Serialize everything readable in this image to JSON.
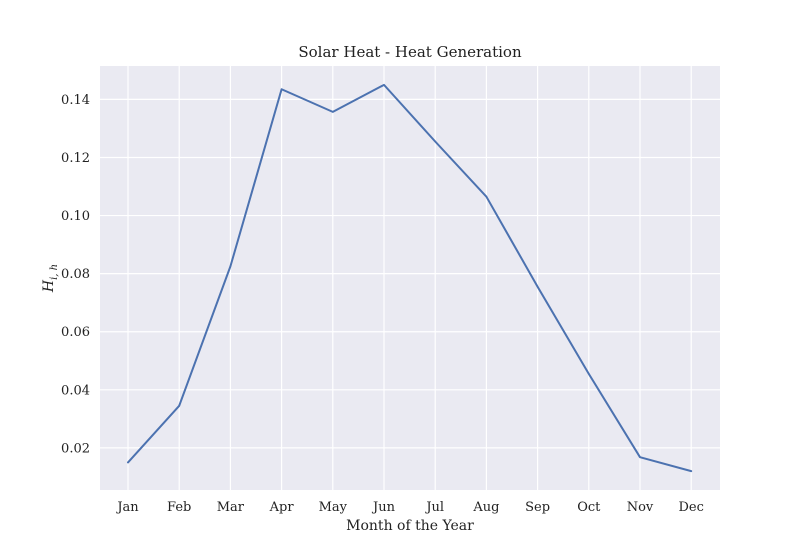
{
  "chart_data": {
    "type": "line",
    "title": "Solar Heat - Heat Generation",
    "xlabel": "Month of the Year",
    "ylabel_main": "H",
    "ylabel_sub": "i, h",
    "categories": [
      "Jan",
      "Feb",
      "Mar",
      "Apr",
      "May",
      "Jun",
      "Jul",
      "Aug",
      "Sep",
      "Oct",
      "Nov",
      "Dec"
    ],
    "series": [
      {
        "values": [
          0.015,
          0.0345,
          0.0825,
          0.1435,
          0.1357,
          0.145,
          0.1255,
          0.1065,
          0.0755,
          0.0455,
          0.0168,
          0.012
        ]
      }
    ],
    "ylim": [
      0.0055,
      0.1515
    ],
    "yticks": [
      0.02,
      0.04,
      0.06,
      0.08,
      0.1,
      0.12,
      0.14
    ],
    "ytick_labels": [
      "0.02",
      "0.04",
      "0.06",
      "0.08",
      "0.10",
      "0.12",
      "0.14"
    ],
    "grid": true,
    "colors": {
      "background": "#eaeaf2",
      "grid": "#ffffff",
      "line": "#4c72b0"
    }
  }
}
